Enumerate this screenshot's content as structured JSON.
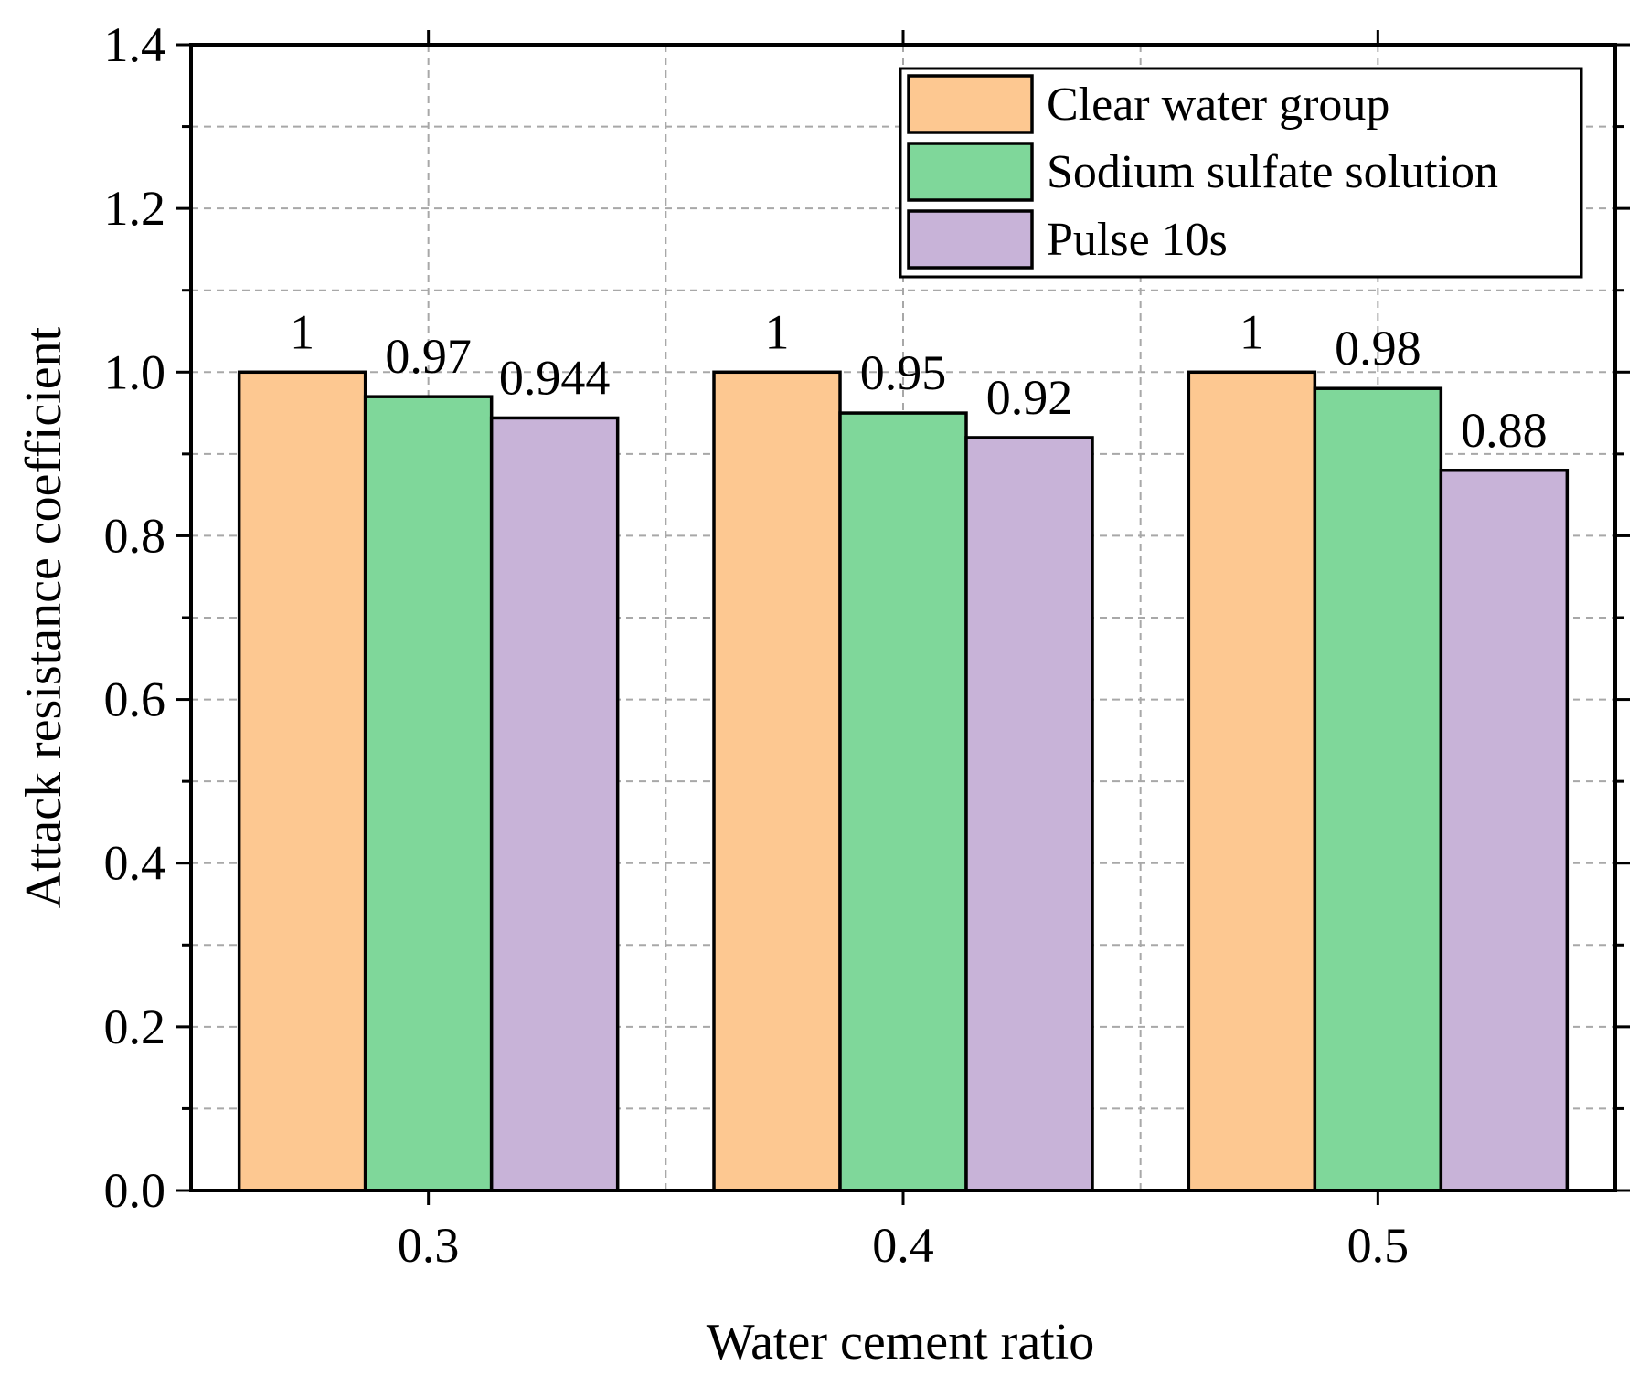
{
  "chart_data": {
    "type": "bar",
    "title": "",
    "xlabel": "Water cement ratio",
    "ylabel": "Attack resistance coefficient",
    "categories": [
      "0.3",
      "0.4",
      "0.5"
    ],
    "ylim": [
      0,
      1.4
    ],
    "yticks": [
      0.0,
      0.2,
      0.4,
      0.6,
      0.8,
      1.0,
      1.2,
      1.4
    ],
    "ytick_labels": [
      "0.0",
      "0.2",
      "0.4",
      "0.6",
      "0.8",
      "1.0",
      "1.2",
      "1.4"
    ],
    "grid": true,
    "legend_position": "top-right",
    "series": [
      {
        "name": "Clear water group",
        "color": "#FDC891",
        "values": [
          1,
          1,
          1
        ],
        "labels": [
          "1",
          "1",
          "1"
        ]
      },
      {
        "name": "Sodium sulfate solution",
        "color": "#7FD79A",
        "values": [
          0.97,
          0.95,
          0.98
        ],
        "labels": [
          "0.97",
          "0.95",
          "0.98"
        ]
      },
      {
        "name": "Pulse 10s",
        "color": "#C8B3D8",
        "values": [
          0.944,
          0.92,
          0.88
        ],
        "labels": [
          "0.944",
          "0.92",
          "0.88"
        ]
      }
    ]
  }
}
